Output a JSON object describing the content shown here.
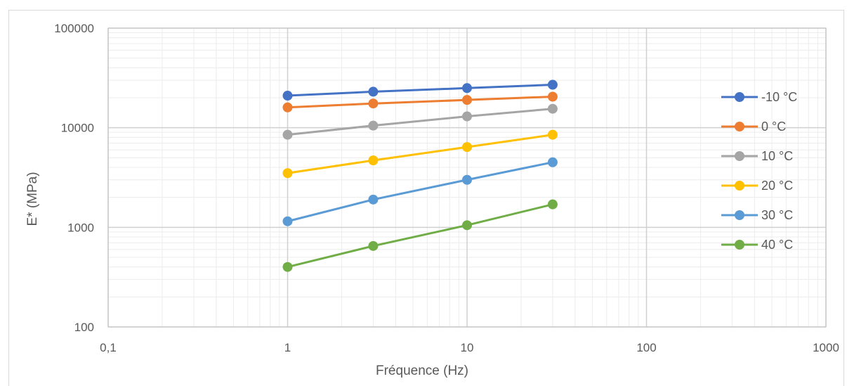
{
  "chart_data": {
    "type": "line",
    "title": "",
    "xlabel": "Fréquence (Hz)",
    "ylabel": "E* (MPa)",
    "x_scale": "log",
    "y_scale": "log",
    "xlim": [
      0.1,
      1000
    ],
    "ylim": [
      100,
      100000
    ],
    "x_ticks": [
      0.1,
      1,
      10,
      100,
      1000
    ],
    "x_tick_labels": [
      "0,1",
      "1",
      "10",
      "100",
      "1000"
    ],
    "y_ticks": [
      100,
      1000,
      10000,
      100000
    ],
    "y_tick_labels": [
      "100",
      "1000",
      "10000",
      "100000"
    ],
    "grid": true,
    "legend_position": "right",
    "x": [
      1,
      3,
      10,
      30
    ],
    "series": [
      {
        "name": "-10 °C",
        "color": "#4472C4",
        "values": [
          21000,
          23000,
          25000,
          27000
        ]
      },
      {
        "name": "0 °C",
        "color": "#ED7D31",
        "values": [
          16000,
          17500,
          19000,
          20500
        ]
      },
      {
        "name": "10 °C",
        "color": "#A5A5A5",
        "values": [
          8500,
          10500,
          13000,
          15500
        ]
      },
      {
        "name": "20 °C",
        "color": "#FFC000",
        "values": [
          3500,
          4700,
          6400,
          8500
        ]
      },
      {
        "name": "30 °C",
        "color": "#5B9BD5",
        "values": [
          1150,
          1900,
          3000,
          4500
        ]
      },
      {
        "name": "40 °C",
        "color": "#70AD47",
        "values": [
          400,
          650,
          1050,
          1700
        ]
      }
    ]
  }
}
